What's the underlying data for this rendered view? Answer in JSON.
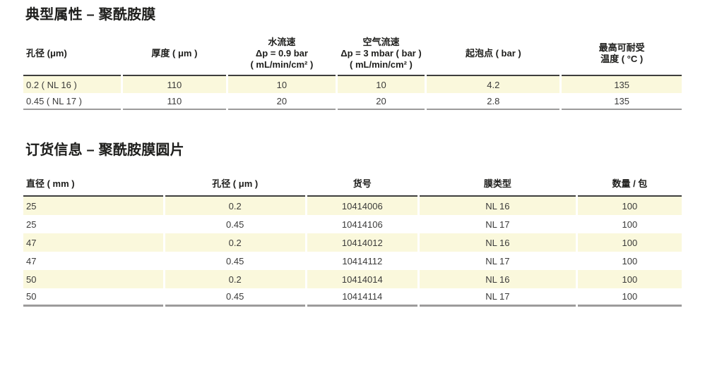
{
  "colors": {
    "row_yellow": "#faf8dc",
    "text": "#3b3b3a",
    "title": "#1d1d1b",
    "header_rule": "#3e3e3d",
    "bottom_rule": "#9c9b9b",
    "background": "#ffffff"
  },
  "section1": {
    "title": "典型属性 – 聚酰胺膜",
    "table": {
      "columns": [
        "孔径 (μm)",
        "厚度 ( μm )",
        "水流速\nΔp = 0.9 bar\n( mL/min/cm² )",
        "空气流速\nΔp = 3 mbar ( bar )\n( mL/min/cm² )",
        "起泡点 ( bar )",
        "最高可耐受\n温度 ( °C )"
      ],
      "rows": [
        [
          "0.2 ( NL 16 )",
          "110",
          "10",
          "10",
          "4.2",
          "135"
        ],
        [
          "0.45 ( NL 17 )",
          "110",
          "20",
          "20",
          "2.8",
          "135"
        ]
      ]
    }
  },
  "section2": {
    "title": "订货信息 – 聚酰胺膜圆片",
    "table": {
      "columns": [
        "直径 ( mm )",
        "孔径 ( μm )",
        "货号",
        "膜类型",
        "数量 / 包"
      ],
      "rows": [
        [
          "25",
          "0.2",
          "10414006",
          "NL 16",
          "100"
        ],
        [
          "25",
          "0.45",
          "10414106",
          "NL 17",
          "100"
        ],
        [
          "47",
          "0.2",
          "10414012",
          "NL 16",
          "100"
        ],
        [
          "47",
          "0.45",
          "10414112",
          "NL 17",
          "100"
        ],
        [
          "50",
          "0.2",
          "10414014",
          "NL 16",
          "100"
        ],
        [
          "50",
          "0.45",
          "10414114",
          "NL 17",
          "100"
        ]
      ]
    }
  }
}
